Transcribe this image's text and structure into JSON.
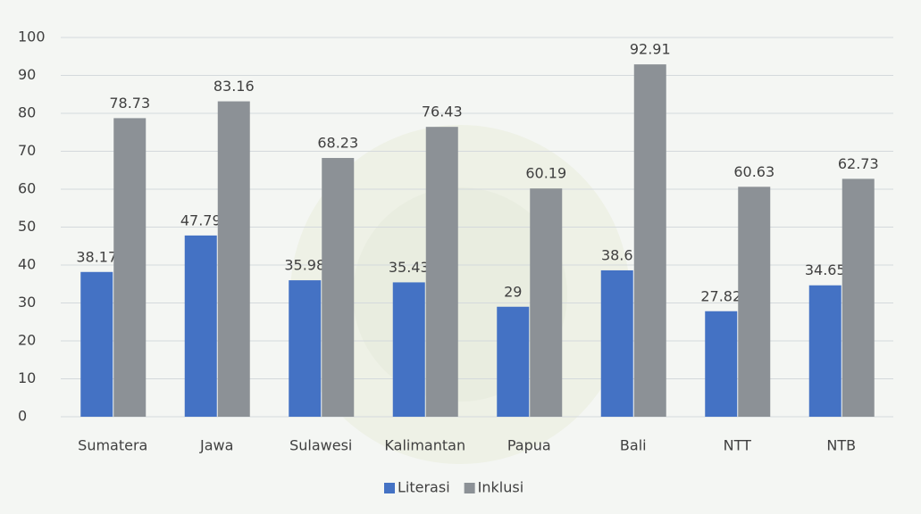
{
  "chart_data": {
    "type": "bar",
    "categories": [
      "Sumatera",
      "Jawa",
      "Sulawesi",
      "Kalimantan",
      "Papua",
      "Bali",
      "NTT",
      "NTB"
    ],
    "series": [
      {
        "name": "Literasi",
        "color": "#4472c4",
        "values": [
          38.17,
          47.79,
          35.98,
          35.43,
          29,
          38.6,
          27.82,
          34.65
        ]
      },
      {
        "name": "Inklusi",
        "color": "#8c9196",
        "values": [
          78.73,
          83.16,
          68.23,
          76.43,
          60.19,
          92.91,
          60.63,
          62.73
        ]
      }
    ],
    "ylim": [
      0,
      100
    ],
    "yticks": [
      0,
      10,
      20,
      30,
      40,
      50,
      60,
      70,
      80,
      90,
      100
    ],
    "grid": true,
    "legend": "bottom"
  }
}
